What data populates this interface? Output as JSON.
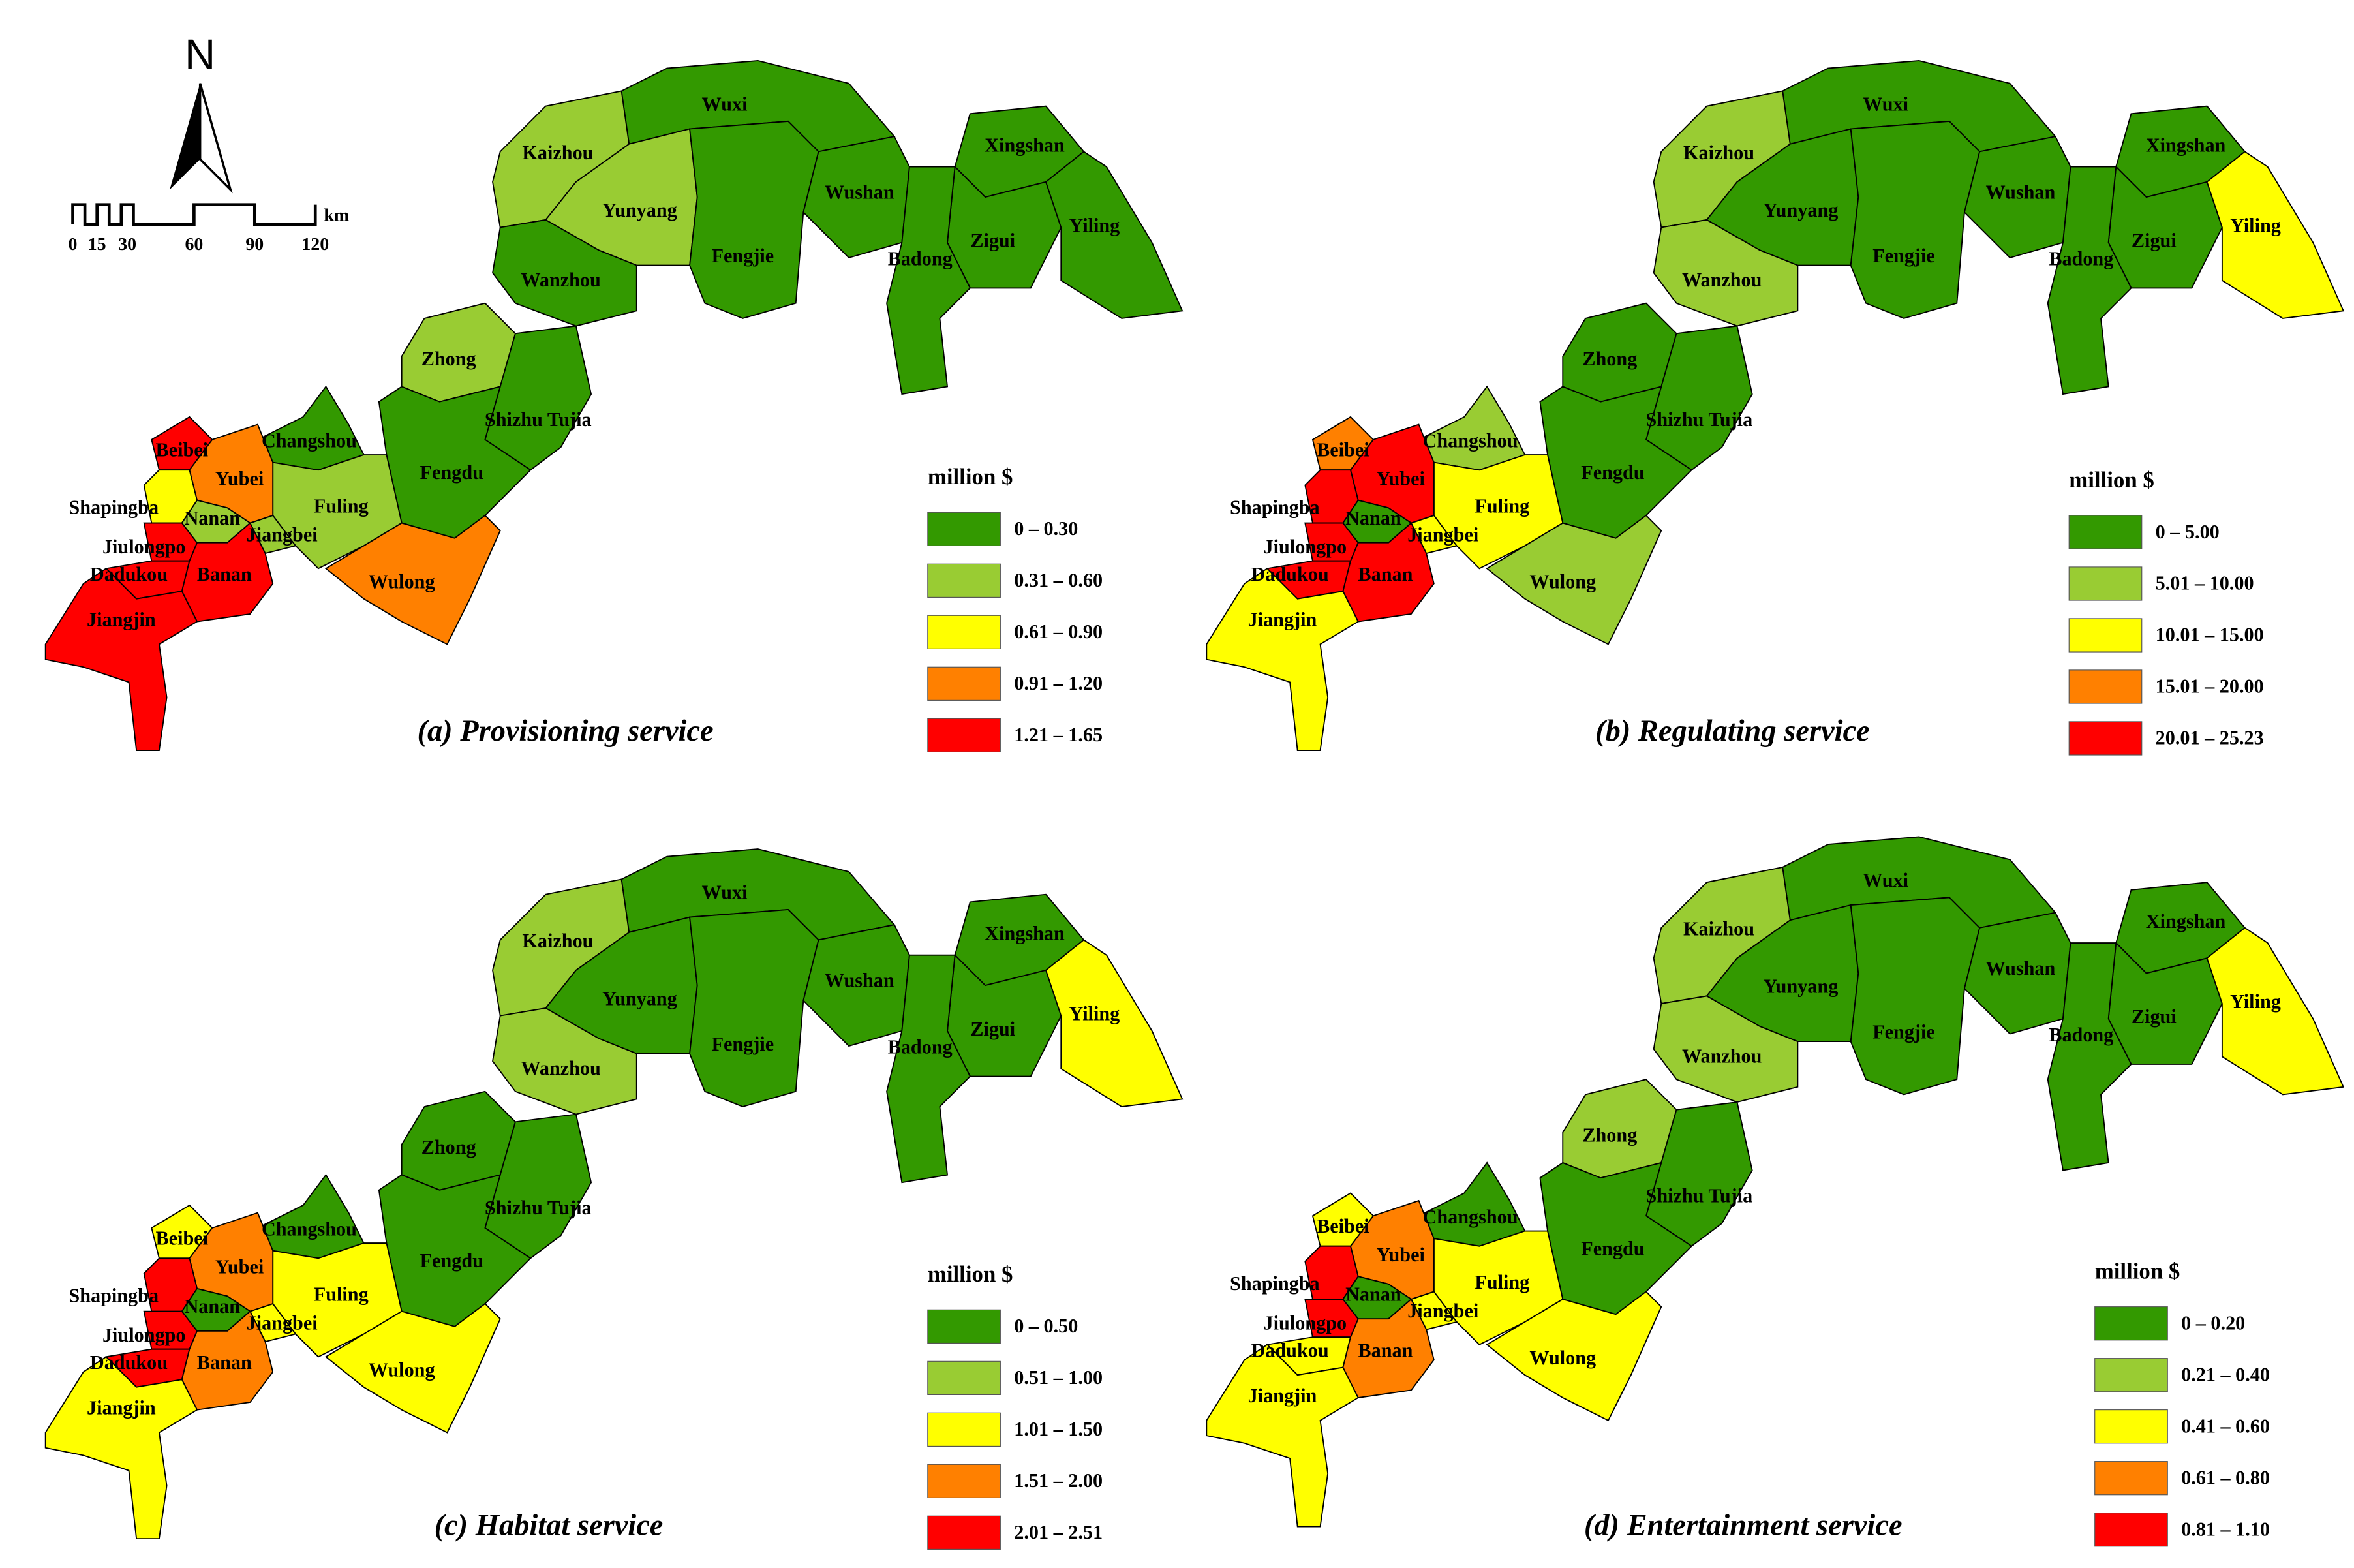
{
  "north": "N",
  "scale_bar": {
    "ticks": [
      "0",
      "15",
      "30",
      "60",
      "90",
      "120"
    ],
    "unit": "km"
  },
  "panels": [
    {
      "title": "(a) Provisioning service",
      "legend_title": "million $",
      "legend": [
        {
          "label": "0 – 0.30",
          "color": "#339900"
        },
        {
          "label": "0.31 – 0.60",
          "color": "#99cc33"
        },
        {
          "label": "0.61 – 0.90",
          "color": "#ffff00"
        },
        {
          "label": "0.91 – 1.20",
          "color": "#ff8000"
        },
        {
          "label": "1.21 – 1.65",
          "color": "#ff0000"
        }
      ],
      "regions": [
        {
          "name": "Wuxi",
          "color": "#339900"
        },
        {
          "name": "Kaizhou",
          "color": "#99cc33"
        },
        {
          "name": "Yunyang",
          "color": "#99cc33"
        },
        {
          "name": "Fengjie",
          "color": "#339900"
        },
        {
          "name": "Wushan",
          "color": "#339900"
        },
        {
          "name": "Xingshan",
          "color": "#339900"
        },
        {
          "name": "Zigui",
          "color": "#339900"
        },
        {
          "name": "Yiling",
          "color": "#339900"
        },
        {
          "name": "Badong",
          "color": "#339900"
        },
        {
          "name": "Wanzhou",
          "color": "#339900"
        },
        {
          "name": "Zhong",
          "color": "#99cc33"
        },
        {
          "name": "Shizhu Tujia",
          "color": "#339900"
        },
        {
          "name": "Changshou",
          "color": "#339900"
        },
        {
          "name": "Fengdu",
          "color": "#339900"
        },
        {
          "name": "Fuling",
          "color": "#99cc33"
        },
        {
          "name": "Jiangbei",
          "color": "#99cc33"
        },
        {
          "name": "Wulong",
          "color": "#ff8000"
        },
        {
          "name": "Beibei",
          "color": "#ff0000"
        },
        {
          "name": "Yubei",
          "color": "#ff8000"
        },
        {
          "name": "Shapingba",
          "color": "#ffff00"
        },
        {
          "name": "Nanan",
          "color": "#99cc33"
        },
        {
          "name": "Jiulongpo",
          "color": "#ff0000"
        },
        {
          "name": "Dadukou",
          "color": "#ff0000"
        },
        {
          "name": "Banan",
          "color": "#ff0000"
        },
        {
          "name": "Jiangjin",
          "color": "#ff0000"
        }
      ]
    },
    {
      "title": "(b) Regulating service",
      "legend_title": "million $",
      "legend": [
        {
          "label": "0 – 5.00",
          "color": "#339900"
        },
        {
          "label": "5.01 – 10.00",
          "color": "#99cc33"
        },
        {
          "label": "10.01 – 15.00",
          "color": "#ffff00"
        },
        {
          "label": "15.01 – 20.00",
          "color": "#ff8000"
        },
        {
          "label": "20.01 – 25.23",
          "color": "#ff0000"
        }
      ],
      "regions": [
        {
          "name": "Wuxi",
          "color": "#339900"
        },
        {
          "name": "Kaizhou",
          "color": "#99cc33"
        },
        {
          "name": "Yunyang",
          "color": "#339900"
        },
        {
          "name": "Fengjie",
          "color": "#339900"
        },
        {
          "name": "Wushan",
          "color": "#339900"
        },
        {
          "name": "Xingshan",
          "color": "#339900"
        },
        {
          "name": "Zigui",
          "color": "#339900"
        },
        {
          "name": "Yiling",
          "color": "#ffff00"
        },
        {
          "name": "Badong",
          "color": "#339900"
        },
        {
          "name": "Wanzhou",
          "color": "#99cc33"
        },
        {
          "name": "Zhong",
          "color": "#339900"
        },
        {
          "name": "Shizhu Tujia",
          "color": "#339900"
        },
        {
          "name": "Changshou",
          "color": "#99cc33"
        },
        {
          "name": "Fengdu",
          "color": "#339900"
        },
        {
          "name": "Fuling",
          "color": "#ffff00"
        },
        {
          "name": "Jiangbei",
          "color": "#ffff00"
        },
        {
          "name": "Wulong",
          "color": "#99cc33"
        },
        {
          "name": "Beibei",
          "color": "#ff8000"
        },
        {
          "name": "Yubei",
          "color": "#ff0000"
        },
        {
          "name": "Shapingba",
          "color": "#ff0000"
        },
        {
          "name": "Nanan",
          "color": "#339900"
        },
        {
          "name": "Jiulongpo",
          "color": "#ff0000"
        },
        {
          "name": "Dadukou",
          "color": "#ff0000"
        },
        {
          "name": "Banan",
          "color": "#ff0000"
        },
        {
          "name": "Jiangjin",
          "color": "#ffff00"
        }
      ]
    },
    {
      "title": "(c) Habitat service",
      "legend_title": "million $",
      "legend": [
        {
          "label": "0 – 0.50",
          "color": "#339900"
        },
        {
          "label": "0.51 – 1.00",
          "color": "#99cc33"
        },
        {
          "label": "1.01 – 1.50",
          "color": "#ffff00"
        },
        {
          "label": "1.51 – 2.00",
          "color": "#ff8000"
        },
        {
          "label": "2.01 – 2.51",
          "color": "#ff0000"
        }
      ],
      "regions": [
        {
          "name": "Wuxi",
          "color": "#339900"
        },
        {
          "name": "Kaizhou",
          "color": "#99cc33"
        },
        {
          "name": "Yunyang",
          "color": "#339900"
        },
        {
          "name": "Fengjie",
          "color": "#339900"
        },
        {
          "name": "Wushan",
          "color": "#339900"
        },
        {
          "name": "Xingshan",
          "color": "#339900"
        },
        {
          "name": "Zigui",
          "color": "#339900"
        },
        {
          "name": "Yiling",
          "color": "#ffff00"
        },
        {
          "name": "Badong",
          "color": "#339900"
        },
        {
          "name": "Wanzhou",
          "color": "#99cc33"
        },
        {
          "name": "Zhong",
          "color": "#339900"
        },
        {
          "name": "Shizhu Tujia",
          "color": "#339900"
        },
        {
          "name": "Changshou",
          "color": "#339900"
        },
        {
          "name": "Fengdu",
          "color": "#339900"
        },
        {
          "name": "Fuling",
          "color": "#ffff00"
        },
        {
          "name": "Jiangbei",
          "color": "#ffff00"
        },
        {
          "name": "Wulong",
          "color": "#ffff00"
        },
        {
          "name": "Beibei",
          "color": "#ffff00"
        },
        {
          "name": "Yubei",
          "color": "#ff8000"
        },
        {
          "name": "Shapingba",
          "color": "#ff0000"
        },
        {
          "name": "Nanan",
          "color": "#339900"
        },
        {
          "name": "Jiulongpo",
          "color": "#ff0000"
        },
        {
          "name": "Dadukou",
          "color": "#ff0000"
        },
        {
          "name": "Banan",
          "color": "#ff8000"
        },
        {
          "name": "Jiangjin",
          "color": "#ffff00"
        }
      ]
    },
    {
      "title": "(d) Entertainment service",
      "legend_title": "million $",
      "legend": [
        {
          "label": "0 – 0.20",
          "color": "#339900"
        },
        {
          "label": "0.21 – 0.40",
          "color": "#99cc33"
        },
        {
          "label": "0.41 – 0.60",
          "color": "#ffff00"
        },
        {
          "label": "0.61 – 0.80",
          "color": "#ff8000"
        },
        {
          "label": "0.81 – 1.10",
          "color": "#ff0000"
        }
      ],
      "regions": [
        {
          "name": "Wuxi",
          "color": "#339900"
        },
        {
          "name": "Kaizhou",
          "color": "#99cc33"
        },
        {
          "name": "Yunyang",
          "color": "#339900"
        },
        {
          "name": "Fengjie",
          "color": "#339900"
        },
        {
          "name": "Wushan",
          "color": "#339900"
        },
        {
          "name": "Xingshan",
          "color": "#339900"
        },
        {
          "name": "Zigui",
          "color": "#339900"
        },
        {
          "name": "Yiling",
          "color": "#ffff00"
        },
        {
          "name": "Badong",
          "color": "#339900"
        },
        {
          "name": "Wanzhou",
          "color": "#99cc33"
        },
        {
          "name": "Zhong",
          "color": "#99cc33"
        },
        {
          "name": "Shizhu Tujia",
          "color": "#339900"
        },
        {
          "name": "Changshou",
          "color": "#339900"
        },
        {
          "name": "Fengdu",
          "color": "#339900"
        },
        {
          "name": "Fuling",
          "color": "#ffff00"
        },
        {
          "name": "Jiangbei",
          "color": "#ffff00"
        },
        {
          "name": "Wulong",
          "color": "#ffff00"
        },
        {
          "name": "Beibei",
          "color": "#ffff00"
        },
        {
          "name": "Yubei",
          "color": "#ff8000"
        },
        {
          "name": "Shapingba",
          "color": "#ff0000"
        },
        {
          "name": "Nanan",
          "color": "#339900"
        },
        {
          "name": "Jiulongpo",
          "color": "#ff0000"
        },
        {
          "name": "Dadukou",
          "color": "#ffff00"
        },
        {
          "name": "Banan",
          "color": "#ff8000"
        },
        {
          "name": "Jiangjin",
          "color": "#ffff00"
        }
      ]
    }
  ]
}
